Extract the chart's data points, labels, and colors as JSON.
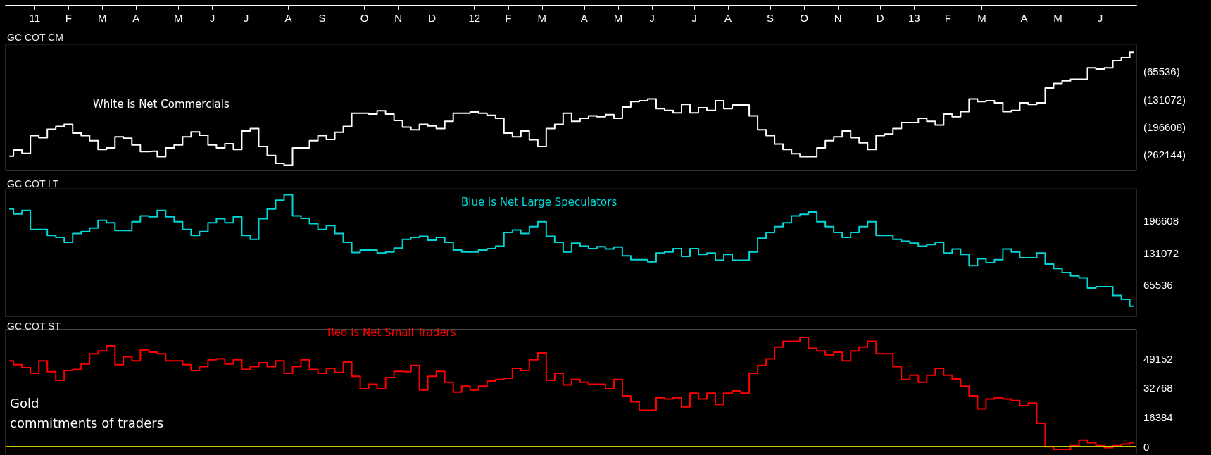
{
  "chart_data": [
    {
      "type": "step",
      "title": "GC COT CM",
      "x": [
        "2010-12-17",
        "2010-12-24",
        "2010-12-31",
        "2011-01-07",
        "2011-01-14",
        "2011-01-21",
        "2011-01-28",
        "2011-02-04",
        "2011-02-11",
        "2011-02-18",
        "2011-02-25",
        "2011-03-04",
        "2011-03-11",
        "2011-03-18",
        "2011-03-25",
        "2011-04-01",
        "2011-04-08",
        "2011-04-15",
        "2011-04-22",
        "2011-04-29",
        "2011-05-06",
        "2011-05-13",
        "2011-05-20",
        "2011-05-27",
        "2011-06-03",
        "2011-06-10",
        "2011-06-17",
        "2011-06-24",
        "2011-07-01",
        "2011-07-08",
        "2011-07-15",
        "2011-07-22",
        "2011-07-29",
        "2011-08-05",
        "2011-08-12",
        "2011-08-19",
        "2011-08-26",
        "2011-09-02",
        "2011-09-09",
        "2011-09-16",
        "2011-09-23",
        "2011-09-30",
        "2011-10-07",
        "2011-10-14",
        "2011-10-21",
        "2011-10-28",
        "2011-11-04",
        "2011-11-11",
        "2011-11-18",
        "2011-11-25",
        "2011-12-02",
        "2011-12-09",
        "2011-12-16",
        "2011-12-23",
        "2011-12-30",
        "2012-01-06",
        "2012-01-13",
        "2012-01-20",
        "2012-01-27",
        "2012-02-03",
        "2012-02-10",
        "2012-02-17",
        "2012-02-24",
        "2012-03-02",
        "2012-03-09",
        "2012-03-16",
        "2012-03-23",
        "2012-03-30",
        "2012-04-06",
        "2012-04-13",
        "2012-04-20",
        "2012-04-27",
        "2012-05-04",
        "2012-05-11",
        "2012-05-18",
        "2012-05-25",
        "2012-06-01",
        "2012-06-08",
        "2012-06-15",
        "2012-06-22",
        "2012-06-29",
        "2012-07-06",
        "2012-07-13",
        "2012-07-20",
        "2012-07-27",
        "2012-08-03",
        "2012-08-10",
        "2012-08-17",
        "2012-08-24",
        "2012-08-31",
        "2012-09-07",
        "2012-09-14",
        "2012-09-21",
        "2012-09-28",
        "2012-10-05",
        "2012-10-12",
        "2012-10-19",
        "2012-10-26",
        "2012-11-02",
        "2012-11-09",
        "2012-11-16",
        "2012-11-23",
        "2012-11-30",
        "2012-12-07",
        "2012-12-14",
        "2012-12-21",
        "2012-12-28",
        "2013-01-04",
        "2013-01-11",
        "2013-01-18",
        "2013-01-25",
        "2013-02-01",
        "2013-02-08",
        "2013-02-15",
        "2013-02-22",
        "2013-03-01",
        "2013-03-08",
        "2013-03-15",
        "2013-03-22",
        "2013-03-29",
        "2013-04-05",
        "2013-04-12",
        "2013-04-19",
        "2013-04-26",
        "2013-05-03",
        "2013-05-10",
        "2013-05-17",
        "2013-05-24",
        "2013-05-31",
        "2013-06-07",
        "2013-06-14",
        "2013-06-21",
        "2013-06-28",
        "2013-07-05"
      ],
      "series": [
        {
          "name": "White is Net Commercials",
          "color": "#ffffff",
          "values": [
            -266000,
            -251000,
            -259000,
            -217000,
            -222000,
            -202000,
            -195000,
            -190000,
            -211000,
            -217000,
            -229000,
            -250000,
            -246000,
            -220000,
            -223000,
            -239000,
            -255000,
            -254000,
            -267000,
            -246000,
            -239000,
            -220000,
            -208000,
            -216000,
            -239000,
            -246000,
            -236000,
            -250000,
            -206000,
            -200000,
            -243000,
            -264000,
            -283000,
            -287000,
            -246000,
            -246000,
            -229000,
            -217000,
            -226000,
            -209000,
            -195000,
            -164000,
            -164000,
            -166000,
            -158000,
            -166000,
            -181000,
            -197000,
            -203000,
            -190000,
            -194000,
            -200000,
            -183000,
            -164000,
            -164000,
            -161000,
            -164000,
            -169000,
            -176000,
            -211000,
            -220000,
            -206000,
            -227000,
            -243000,
            -200000,
            -190000,
            -164000,
            -183000,
            -176000,
            -170000,
            -172000,
            -167000,
            -176000,
            -149000,
            -136000,
            -134000,
            -130000,
            -153000,
            -157000,
            -163000,
            -143000,
            -163000,
            -151000,
            -157000,
            -134000,
            -153000,
            -144000,
            -144000,
            -170000,
            -203000,
            -217000,
            -237000,
            -250000,
            -260000,
            -267000,
            -267000,
            -246000,
            -229000,
            -220000,
            -206000,
            -222000,
            -234000,
            -250000,
            -217000,
            -213000,
            -200000,
            -186000,
            -186000,
            -176000,
            -183000,
            -192000,
            -166000,
            -172000,
            -160000,
            -130000,
            -136000,
            -134000,
            -139000,
            -160000,
            -157000,
            -139000,
            -143000,
            -139000,
            -104000,
            -93000,
            -87000,
            -83000,
            -83000,
            -56000,
            -59000,
            -56000,
            -39000,
            -32000,
            -19000
          ]
        }
      ],
      "xlim": [
        "2010-12-14",
        "2013-07-07"
      ],
      "xticks": [
        {
          "value": "2011-01-07",
          "label": "11"
        },
        {
          "value": "2011-02-04",
          "label": "F"
        },
        {
          "value": "2011-03-04",
          "label": "M"
        },
        {
          "value": "2011-04-01",
          "label": "A"
        },
        {
          "value": "2011-05-06",
          "label": "M"
        },
        {
          "value": "2011-06-03",
          "label": "J"
        },
        {
          "value": "2011-07-01",
          "label": "J"
        },
        {
          "value": "2011-08-05",
          "label": "A"
        },
        {
          "value": "2011-09-02",
          "label": "S"
        },
        {
          "value": "2011-10-07",
          "label": "O"
        },
        {
          "value": "2011-11-04",
          "label": "N"
        },
        {
          "value": "2011-12-02",
          "label": "D"
        },
        {
          "value": "2012-01-06",
          "label": "12"
        },
        {
          "value": "2012-02-03",
          "label": "F"
        },
        {
          "value": "2012-03-02",
          "label": "M"
        },
        {
          "value": "2012-04-06",
          "label": "A"
        },
        {
          "value": "2012-05-04",
          "label": "M"
        },
        {
          "value": "2012-06-01",
          "label": "J"
        },
        {
          "value": "2012-07-06",
          "label": "J"
        },
        {
          "value": "2012-08-03",
          "label": "A"
        },
        {
          "value": "2012-09-07",
          "label": "S"
        },
        {
          "value": "2012-10-05",
          "label": "O"
        },
        {
          "value": "2012-11-02",
          "label": "N"
        },
        {
          "value": "2012-12-07",
          "label": "D"
        },
        {
          "value": "2013-01-04",
          "label": "13"
        },
        {
          "value": "2013-02-01",
          "label": "F"
        },
        {
          "value": "2013-03-01",
          "label": "M"
        },
        {
          "value": "2013-04-05",
          "label": "A"
        },
        {
          "value": "2013-05-03",
          "label": "M"
        },
        {
          "value": "2013-06-07",
          "label": "J"
        }
      ],
      "ylim": [
        -300000,
        0
      ],
      "yticks": [
        {
          "value": -65536,
          "label": "(65536)"
        },
        {
          "value": -131072,
          "label": "(131072)"
        },
        {
          "value": -196608,
          "label": "(196608)"
        },
        {
          "value": -262144,
          "label": "(262144)"
        }
      ]
    },
    {
      "type": "step",
      "title": "GC COT LT",
      "x": [
        "2010-12-17",
        "2010-12-24",
        "2010-12-31",
        "2011-01-07",
        "2011-01-14",
        "2011-01-21",
        "2011-01-28",
        "2011-02-04",
        "2011-02-11",
        "2011-02-18",
        "2011-02-25",
        "2011-03-04",
        "2011-03-11",
        "2011-03-18",
        "2011-03-25",
        "2011-04-01",
        "2011-04-08",
        "2011-04-15",
        "2011-04-22",
        "2011-04-29",
        "2011-05-06",
        "2011-05-13",
        "2011-05-20",
        "2011-05-27",
        "2011-06-03",
        "2011-06-10",
        "2011-06-17",
        "2011-06-24",
        "2011-07-01",
        "2011-07-08",
        "2011-07-15",
        "2011-07-22",
        "2011-07-29",
        "2011-08-05",
        "2011-08-12",
        "2011-08-19",
        "2011-08-26",
        "2011-09-02",
        "2011-09-09",
        "2011-09-16",
        "2011-09-23",
        "2011-09-30",
        "2011-10-07",
        "2011-10-14",
        "2011-10-21",
        "2011-10-28",
        "2011-11-04",
        "2011-11-11",
        "2011-11-18",
        "2011-11-25",
        "2011-12-02",
        "2011-12-09",
        "2011-12-16",
        "2011-12-23",
        "2011-12-30",
        "2012-01-06",
        "2012-01-13",
        "2012-01-20",
        "2012-01-27",
        "2012-02-03",
        "2012-02-10",
        "2012-02-17",
        "2012-02-24",
        "2012-03-02",
        "2012-03-09",
        "2012-03-16",
        "2012-03-23",
        "2012-03-30",
        "2012-04-06",
        "2012-04-13",
        "2012-04-20",
        "2012-04-27",
        "2012-05-04",
        "2012-05-11",
        "2012-05-18",
        "2012-05-25",
        "2012-06-01",
        "2012-06-08",
        "2012-06-15",
        "2012-06-22",
        "2012-06-29",
        "2012-07-06",
        "2012-07-13",
        "2012-07-20",
        "2012-07-27",
        "2012-08-03",
        "2012-08-10",
        "2012-08-17",
        "2012-08-24",
        "2012-08-31",
        "2012-09-07",
        "2012-09-14",
        "2012-09-21",
        "2012-09-28",
        "2012-10-05",
        "2012-10-12",
        "2012-10-19",
        "2012-10-26",
        "2012-11-02",
        "2012-11-09",
        "2012-11-16",
        "2012-11-23",
        "2012-11-30",
        "2012-12-07",
        "2012-12-14",
        "2012-12-21",
        "2012-12-28",
        "2013-01-04",
        "2013-01-11",
        "2013-01-18",
        "2013-01-25",
        "2013-02-01",
        "2013-02-08",
        "2013-02-15",
        "2013-02-22",
        "2013-03-01",
        "2013-03-08",
        "2013-03-15",
        "2013-03-22",
        "2013-03-29",
        "2013-04-05",
        "2013-04-12",
        "2013-04-19",
        "2013-04-26",
        "2013-05-03",
        "2013-05-10",
        "2013-05-17",
        "2013-05-24",
        "2013-05-31",
        "2013-06-07",
        "2013-06-14",
        "2013-06-21",
        "2013-06-28",
        "2013-07-05"
      ],
      "series": [
        {
          "name": "Blue is Net Large Speculators",
          "color": "#00d8d8",
          "values": [
            221000,
            211000,
            218000,
            179000,
            179000,
            167000,
            163000,
            153000,
            171000,
            175000,
            182000,
            198000,
            193000,
            177000,
            177000,
            195000,
            207000,
            205000,
            218000,
            205000,
            195000,
            179000,
            167000,
            175000,
            193000,
            201000,
            193000,
            205000,
            167000,
            159000,
            201000,
            221000,
            239000,
            250000,
            207000,
            202000,
            191000,
            179000,
            187000,
            171000,
            153000,
            132000,
            137000,
            137000,
            131000,
            133000,
            141000,
            159000,
            163000,
            165000,
            157000,
            163000,
            153000,
            137000,
            133000,
            133000,
            137000,
            140000,
            145000,
            173000,
            178000,
            171000,
            185000,
            195000,
            165000,
            153000,
            133000,
            151000,
            145000,
            140000,
            144000,
            139000,
            143000,
            125000,
            117000,
            117000,
            113000,
            131000,
            133000,
            140000,
            124000,
            140000,
            128000,
            131000,
            116000,
            128000,
            116000,
            116000,
            133000,
            161000,
            173000,
            185000,
            193000,
            207000,
            210000,
            215000,
            195000,
            185000,
            173000,
            163000,
            173000,
            185000,
            195000,
            167000,
            167000,
            159000,
            155000,
            151000,
            145000,
            148000,
            153000,
            131000,
            139000,
            128000,
            105000,
            119000,
            111000,
            117000,
            139000,
            133000,
            121000,
            121000,
            131000,
            108000,
            99000,
            91000,
            84000,
            80000,
            59000,
            62000,
            62000,
            44000,
            36000,
            22000
          ]
        }
      ],
      "xlim": [
        "2010-12-14",
        "2013-07-07"
      ],
      "tick_labels": "y",
      "ylim": [
        0,
        262144
      ],
      "yticks": [
        196608,
        131072,
        65536
      ]
    },
    {
      "type": "step",
      "title": "GC COT ST",
      "x": [
        "2010-12-17",
        "2010-12-24",
        "2010-12-31",
        "2011-01-07",
        "2011-01-14",
        "2011-01-21",
        "2011-01-28",
        "2011-02-04",
        "2011-02-11",
        "2011-02-18",
        "2011-02-25",
        "2011-03-04",
        "2011-03-11",
        "2011-03-18",
        "2011-03-25",
        "2011-04-01",
        "2011-04-08",
        "2011-04-15",
        "2011-04-22",
        "2011-04-29",
        "2011-05-06",
        "2011-05-13",
        "2011-05-20",
        "2011-05-27",
        "2011-06-03",
        "2011-06-10",
        "2011-06-17",
        "2011-06-24",
        "2011-07-01",
        "2011-07-08",
        "2011-07-15",
        "2011-07-22",
        "2011-07-29",
        "2011-08-05",
        "2011-08-12",
        "2011-08-19",
        "2011-08-26",
        "2011-09-02",
        "2011-09-09",
        "2011-09-16",
        "2011-09-23",
        "2011-09-30",
        "2011-10-07",
        "2011-10-14",
        "2011-10-21",
        "2011-10-28",
        "2011-11-04",
        "2011-11-11",
        "2011-11-18",
        "2011-11-25",
        "2011-12-02",
        "2011-12-09",
        "2011-12-16",
        "2011-12-23",
        "2011-12-30",
        "2012-01-06",
        "2012-01-13",
        "2012-01-20",
        "2012-01-27",
        "2012-02-03",
        "2012-02-10",
        "2012-02-17",
        "2012-02-24",
        "2012-03-02",
        "2012-03-09",
        "2012-03-16",
        "2012-03-23",
        "2012-03-30",
        "2012-04-06",
        "2012-04-13",
        "2012-04-20",
        "2012-04-27",
        "2012-05-04",
        "2012-05-11",
        "2012-05-18",
        "2012-05-25",
        "2012-06-01",
        "2012-06-08",
        "2012-06-15",
        "2012-06-22",
        "2012-06-29",
        "2012-07-06",
        "2012-07-13",
        "2012-07-20",
        "2012-07-27",
        "2012-08-03",
        "2012-08-10",
        "2012-08-17",
        "2012-08-24",
        "2012-08-31",
        "2012-09-07",
        "2012-09-14",
        "2012-09-21",
        "2012-09-28",
        "2012-10-05",
        "2012-10-12",
        "2012-10-19",
        "2012-10-26",
        "2012-11-02",
        "2012-11-09",
        "2012-11-16",
        "2012-11-23",
        "2012-11-30",
        "2012-12-07",
        "2012-12-14",
        "2012-12-21",
        "2012-12-28",
        "2013-01-04",
        "2013-01-11",
        "2013-01-18",
        "2013-01-25",
        "2013-02-01",
        "2013-02-08",
        "2013-02-15",
        "2013-02-22",
        "2013-03-01",
        "2013-03-08",
        "2013-03-15",
        "2013-03-22",
        "2013-03-29",
        "2013-04-05",
        "2013-04-12",
        "2013-04-19",
        "2013-04-26",
        "2013-05-03",
        "2013-05-10",
        "2013-05-17",
        "2013-05-24",
        "2013-05-31",
        "2013-06-07",
        "2013-06-14",
        "2013-06-21",
        "2013-06-28",
        "2013-07-05"
      ],
      "series": [
        {
          "name": "Red is Net Small Traders",
          "color": "#ff0000",
          "values": [
            48000,
            45800,
            44100,
            41000,
            48000,
            41900,
            37100,
            42600,
            43200,
            46200,
            51900,
            53500,
            56300,
            45800,
            50200,
            48000,
            54100,
            52800,
            51900,
            48000,
            48000,
            45800,
            42600,
            44700,
            48600,
            49100,
            46200,
            48600,
            43200,
            44700,
            46900,
            44700,
            48000,
            41000,
            44700,
            48600,
            43200,
            41000,
            43700,
            41500,
            47300,
            39300,
            32300,
            34900,
            32300,
            38600,
            42100,
            41900,
            45400,
            31600,
            39300,
            42100,
            36000,
            30500,
            33800,
            31600,
            33800,
            36700,
            37500,
            38200,
            43700,
            42600,
            48600,
            52400,
            37100,
            41000,
            34500,
            37500,
            36000,
            34900,
            34900,
            32300,
            37500,
            28400,
            25100,
            20300,
            20300,
            27300,
            26600,
            27300,
            22200,
            29900,
            26600,
            29900,
            23600,
            29900,
            31200,
            29900,
            41000,
            45400,
            49100,
            55600,
            58900,
            58900,
            61100,
            55000,
            53500,
            51300,
            52800,
            48000,
            53500,
            55600,
            58900,
            51900,
            51900,
            44700,
            37500,
            39900,
            36000,
            39900,
            43700,
            39900,
            37800,
            33800,
            28400,
            21100,
            26600,
            27300,
            26600,
            25700,
            22900,
            24400,
            13100,
            0,
            -1500,
            -1500,
            600,
            3700,
            2200,
            600,
            -500,
            600,
            1500,
            2200
          ]
        }
      ],
      "xlim": [
        "2010-12-14",
        "2013-07-07"
      ],
      "tick_labels": "y",
      "ylim": [
        -4096,
        65536
      ],
      "yticks": [
        49152,
        32768,
        16384,
        0
      ],
      "ref_lines": [
        {
          "axis": "y",
          "value": 0,
          "color": "#c8c800"
        }
      ],
      "annotations": [
        "Gold\ncommitments of traders"
      ]
    }
  ]
}
